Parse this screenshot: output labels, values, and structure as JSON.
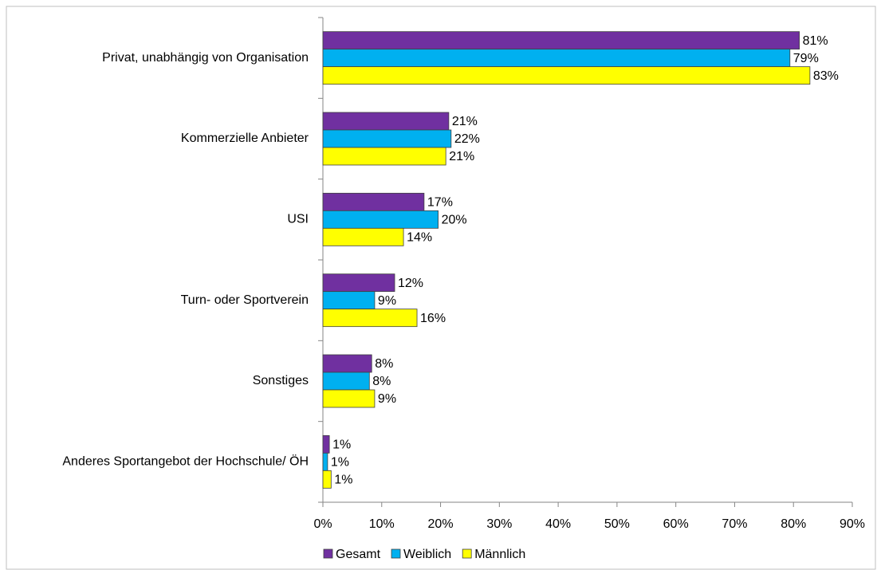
{
  "chart_data": {
    "type": "hbar",
    "categories": [
      "Privat, unabhängig von Organisation",
      "Kommerzielle Anbieter",
      "USI",
      "Turn- oder Sportverein",
      "Sonstiges",
      "Anderes Sportangebot der Hochschule/ ÖH"
    ],
    "series": [
      {
        "name": "Gesamt",
        "color": "#7030a0",
        "values": [
          81.0,
          21.4,
          17.2,
          12.2,
          8.3,
          1.1
        ],
        "value_labels": [
          "81%",
          "21%",
          "17%",
          "12%",
          "8%",
          "1%"
        ]
      },
      {
        "name": "Weiblich",
        "color": "#00b0f0",
        "values": [
          79.4,
          21.8,
          19.6,
          8.8,
          7.9,
          0.8
        ],
        "value_labels": [
          "79%",
          "22%",
          "20%",
          "9%",
          "8%",
          "1%"
        ]
      },
      {
        "name": "Männlich",
        "color": "#ffff00",
        "values": [
          82.8,
          20.9,
          13.7,
          16.0,
          8.8,
          1.4
        ],
        "value_labels": [
          "83%",
          "21%",
          "14%",
          "16%",
          "9%",
          "1%"
        ]
      }
    ],
    "xlim": [
      0,
      90
    ],
    "xticks": [
      {
        "value": 0,
        "label": "0%"
      },
      {
        "value": 10,
        "label": "10%"
      },
      {
        "value": 20,
        "label": "20%"
      },
      {
        "value": 30,
        "label": "30%"
      },
      {
        "value": 40,
        "label": "40%"
      },
      {
        "value": 50,
        "label": "50%"
      },
      {
        "value": 60,
        "label": "60%"
      },
      {
        "value": 70,
        "label": "70%"
      },
      {
        "value": 80,
        "label": "80%"
      },
      {
        "value": 90,
        "label": "90%"
      }
    ],
    "legend": "bottom"
  }
}
